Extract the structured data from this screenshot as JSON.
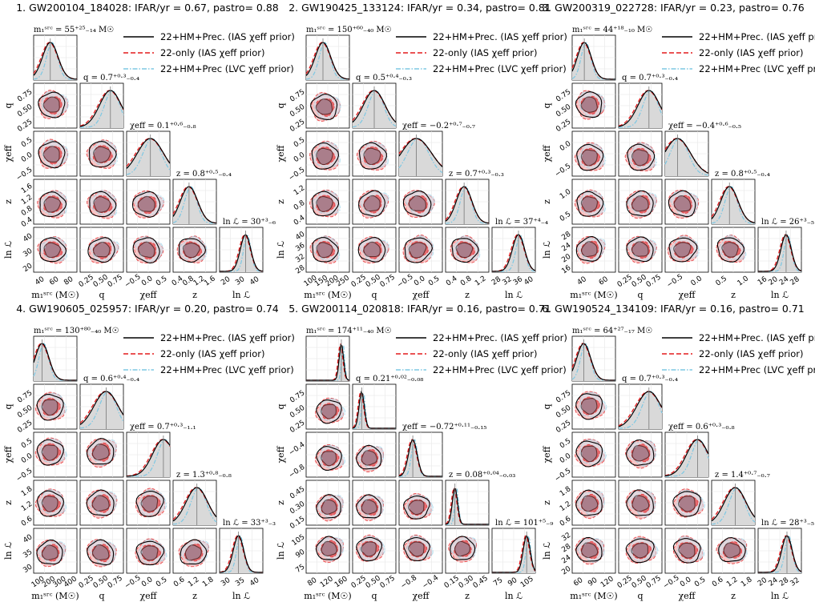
{
  "legend": {
    "entries": [
      {
        "label": "22+HM+Prec. (IAS χeff prior)",
        "color": "#000000",
        "dash": "solid"
      },
      {
        "label": "22-only (IAS χeff prior)",
        "color": "#e41a1c",
        "dash": "dashed"
      },
      {
        "label": "22+HM+Prec (LVC χeff prior)",
        "color": "#7ec8e3",
        "dash": "dashdot"
      }
    ]
  },
  "colors": {
    "black": "#000000",
    "red": "#e41a1c",
    "red_fill_inner": "#e8484b",
    "red_fill_outer": "#f6b3b4",
    "blue": "#7ec8e3",
    "blue_fill": "#cfe6f2",
    "gray_fill": "#d9d9d9"
  },
  "axis_labels": {
    "m1": "m₁ˢʳᶜ (M☉)",
    "q": "q",
    "chi": "χeff",
    "z": "z",
    "lnL": "ln ℒ"
  },
  "chart_data": [
    {
      "type": "corner",
      "title": "1. GW200104_184028: IFAR/yr = 0.67, pastro= 0.88",
      "params": [
        "m1",
        "q",
        "chi",
        "z",
        "lnL"
      ],
      "diag_titles": [
        "m₁ˢʳᶜ = 55⁺²⁵₋₁₄ M☉",
        "q = 0.7⁺⁰·³₋₀.₄",
        "χeff = 0.1⁺⁰·⁶₋₀.₈",
        "z = 0.8⁺⁰·⁵₋₀.₄",
        "ln ℒ = 30⁺³₋₆"
      ],
      "ranges": [
        [
          30,
          95
        ],
        [
          0,
          1
        ],
        [
          -1,
          1
        ],
        [
          0.1,
          2.0
        ],
        [
          18,
          38
        ]
      ],
      "ticks": [
        [
          "40",
          "60",
          "80"
        ],
        [
          "0.25",
          "0.50",
          "0.75"
        ],
        [
          "−0.5",
          "0.0",
          "0.5"
        ],
        [
          "0.4",
          "0.8",
          "1.2",
          "1.6"
        ],
        [
          "20",
          "30",
          "40"
        ]
      ],
      "medians": [
        55,
        0.7,
        0.1,
        0.8,
        30
      ],
      "widths": [
        0.18,
        0.25,
        0.3,
        0.2,
        0.12
      ]
    },
    {
      "type": "corner",
      "title": "2. GW190425_133124: IFAR/yr = 0.34, pastro= 0.81",
      "params": [
        "m1",
        "q",
        "chi",
        "z",
        "lnL"
      ],
      "diag_titles": [
        "m₁ˢʳᶜ = 150⁺⁶⁰₋₄₀ M☉",
        "q = 0.5⁺⁰·⁴₋₀.₃",
        "χeff = −0.2⁺⁰·⁷₋₀.₇",
        "z = 0.7⁺⁰·³₋₀.₃",
        "ln ℒ = 37⁺⁴₋₄"
      ],
      "ranges": [
        [
          80,
          260
        ],
        [
          0,
          1
        ],
        [
          -1,
          1
        ],
        [
          0.1,
          1.5
        ],
        [
          26,
          44
        ]
      ],
      "ticks": [
        [
          "100",
          "150",
          "200",
          "250"
        ],
        [
          "0.25",
          "0.50",
          "0.75"
        ],
        [
          "−0.5",
          "0.0",
          "0.5"
        ],
        [
          "0.4",
          "0.8",
          "1.2"
        ],
        [
          "28",
          "32",
          "36",
          "40"
        ]
      ],
      "medians": [
        150,
        0.5,
        -0.2,
        0.7,
        37
      ],
      "widths": [
        0.18,
        0.25,
        0.35,
        0.18,
        0.14
      ]
    },
    {
      "type": "corner",
      "title": "3. GW200319_022728: IFAR/yr = 0.23, pastro= 0.76",
      "params": [
        "m1",
        "q",
        "chi",
        "z",
        "lnL"
      ],
      "diag_titles": [
        "m₁ˢʳᶜ = 44⁺¹⁸₋₁₀ M☉",
        "q = 0.7⁺⁰·³₋₀.₄",
        "χeff = −0.4⁺⁰·⁶₋₀.₅",
        "z = 0.8⁺⁰·⁵₋₀.₄",
        "ln ℒ = 26⁺³₋₅"
      ],
      "ranges": [
        [
          30,
          80
        ],
        [
          0,
          1
        ],
        [
          -0.8,
          0.6
        ],
        [
          0.1,
          1.8
        ],
        [
          15,
          32
        ]
      ],
      "ticks": [
        [
          "40",
          "60"
        ],
        [
          "0.25",
          "0.50",
          "0.75"
        ],
        [
          "−0.5",
          "0.0"
        ],
        [
          "0.5",
          "1.0"
        ],
        [
          "16",
          "20",
          "24",
          "28"
        ]
      ],
      "medians": [
        44,
        0.7,
        -0.4,
        0.8,
        26
      ],
      "widths": [
        0.16,
        0.25,
        0.3,
        0.2,
        0.12
      ]
    },
    {
      "type": "corner",
      "title": "4. GW190605_025957: IFAR/yr = 0.20, pastro= 0.74",
      "params": [
        "m1",
        "q",
        "chi",
        "z",
        "lnL"
      ],
      "diag_titles": [
        "m₁ˢʳᶜ = 130⁺⁸⁰₋₄₀ M☉",
        "q = 0.6⁺⁰·⁴₋₀.₄",
        "χeff = 0.7⁺⁰·³₋₁.₁",
        "z = 1.3⁺⁰·⁸₋₀.₈",
        "ln ℒ = 33⁺³₋₃"
      ],
      "ranges": [
        [
          60,
          420
        ],
        [
          0,
          1
        ],
        [
          -1,
          1
        ],
        [
          0.2,
          2.2
        ],
        [
          26,
          42
        ]
      ],
      "ticks": [
        [
          "100",
          "200",
          "300",
          "400"
        ],
        [
          "0.25",
          "0.50",
          "0.75"
        ],
        [
          "−0.5",
          "0.0",
          "0.5"
        ],
        [
          "0.6",
          "1.2",
          "1.8"
        ],
        [
          "30",
          "35",
          "40"
        ]
      ],
      "medians": [
        130,
        0.6,
        0.7,
        1.3,
        33
      ],
      "widths": [
        0.16,
        0.28,
        0.25,
        0.25,
        0.12
      ]
    },
    {
      "type": "corner",
      "title": "5. GW200114_020818: IFAR/yr = 0.16, pastro= 0.71",
      "params": [
        "m1",
        "q",
        "chi",
        "z",
        "lnL"
      ],
      "diag_titles": [
        "m₁ˢʳᶜ = 174⁺¹¹₋₄₀ M☉",
        "q = 0.21⁺⁰·⁰²₋₀.₀₈",
        "χeff = −0.72⁺⁰·¹¹₋₀.₁₅",
        "z = 0.08⁺⁰·⁰⁴₋₀.₀₃",
        "ln ℒ = 101⁺⁵₋₉"
      ],
      "ranges": [
        [
          60,
          200
        ],
        [
          0,
          1
        ],
        [
          -1.1,
          0.1
        ],
        [
          -0.05,
          0.55
        ],
        [
          65,
          110
        ]
      ],
      "ticks": [
        [
          "80",
          "120",
          "160"
        ],
        [
          "0.25",
          "0.50",
          "0.75"
        ],
        [
          "−0.8",
          "−0.4"
        ],
        [
          "0.15",
          "0.30",
          "0.45"
        ],
        [
          "75",
          "90",
          "105"
        ]
      ],
      "medians": [
        174,
        0.21,
        -0.72,
        0.08,
        101
      ],
      "widths": [
        0.05,
        0.06,
        0.1,
        0.06,
        0.08
      ]
    },
    {
      "type": "corner",
      "title": "6. GW190524_134109: IFAR/yr = 0.16, pastro= 0.71",
      "params": [
        "m1",
        "q",
        "chi",
        "z",
        "lnL"
      ],
      "diag_titles": [
        "m₁ˢʳᶜ = 64⁺²⁷₋₁₇ M☉",
        "q = 0.7⁺⁰·³₋₀.₄",
        "χeff = 0.6⁺⁰·³₋₀.₈",
        "z = 1.4⁺⁰·⁷₋₀.₇",
        "ln ℒ = 28⁺³₋₅"
      ],
      "ranges": [
        [
          40,
          130
        ],
        [
          0,
          1
        ],
        [
          -0.6,
          1.0
        ],
        [
          0.2,
          2.4
        ],
        [
          18,
          33
        ]
      ],
      "ticks": [
        [
          "60",
          "90",
          "120"
        ],
        [
          "0.25",
          "0.50",
          "0.75"
        ],
        [
          "−0.5",
          "0.0",
          "0.5"
        ],
        [
          "0.6",
          "1.2",
          "1.8"
        ],
        [
          "20",
          "24",
          "28",
          "32"
        ]
      ],
      "medians": [
        64,
        0.7,
        0.6,
        1.4,
        28
      ],
      "widths": [
        0.16,
        0.28,
        0.25,
        0.25,
        0.12
      ]
    }
  ]
}
